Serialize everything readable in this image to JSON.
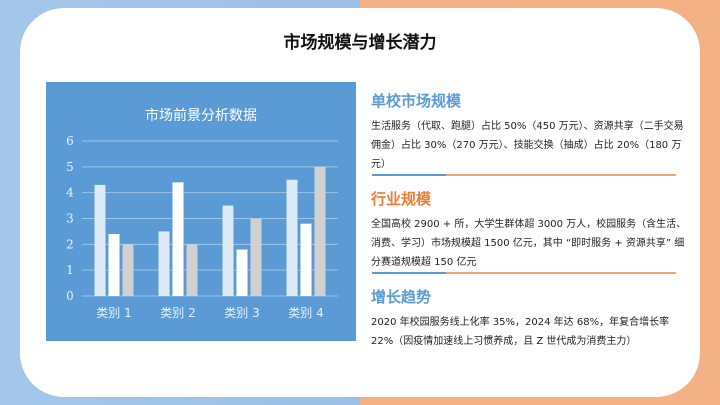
{
  "title": "市场规模与增长潜力",
  "colors": {
    "blue": "#5b9bd5",
    "orange": "#ed7d31",
    "bar1": "#ddebf7",
    "bar2": "#ffffff",
    "bar3": "#d0d0d0"
  },
  "sections": [
    {
      "heading": "单校市场规模",
      "color": "#5b9bd5",
      "text": "生活服务（代取、跑腿）占比 50%（450 万元）、资源共享（二手交易佣金）占比 30%（270 万元）、技能交换（抽成）占比 20%（180 万元）"
    },
    {
      "heading": "行业规模",
      "color": "#ed7d31",
      "text": "全国高校 2900 + 所，大学生群体超 3000 万人，校园服务（含生活、消费、学习）市场规模超 1500 亿元，其中 “即时服务 + 资源共享” 细分赛道规模超 150 亿元"
    },
    {
      "heading": "增长趋势",
      "color": "#5b9bd5",
      "text": "2020 年校园服务线上化率 35%，2024 年达 68%，年复合增长率 22%（因疫情加速线上习惯养成，且 Z 世代成为消费主力）"
    }
  ],
  "chart_data": {
    "type": "bar",
    "title": "市场前景分析数据",
    "categories": [
      "类别 1",
      "类别 2",
      "类别 3",
      "类别 4"
    ],
    "series": [
      {
        "values": [
          4.3,
          2.5,
          3.5,
          4.5
        ]
      },
      {
        "values": [
          2.4,
          4.4,
          1.8,
          2.8
        ]
      },
      {
        "values": [
          2.0,
          2.0,
          3.0,
          5.0
        ]
      }
    ],
    "ylim": [
      0,
      6
    ],
    "yticks": [
      "0",
      "1",
      "2",
      "3",
      "4",
      "5",
      "6"
    ],
    "grid": true
  }
}
